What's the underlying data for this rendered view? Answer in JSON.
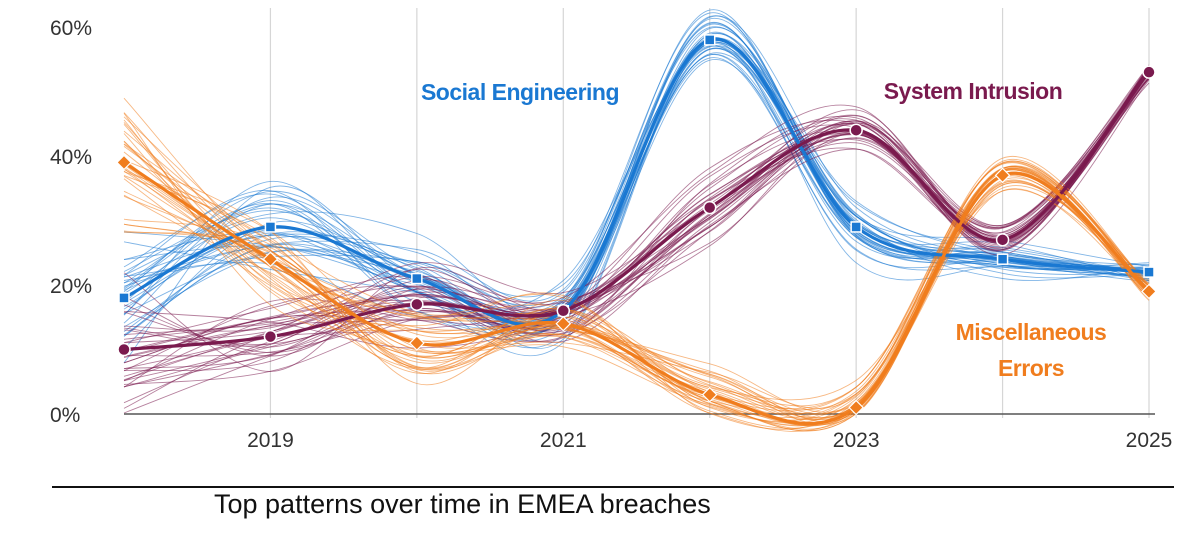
{
  "chart_data": {
    "type": "line",
    "title": "Top patterns over time in EMEA breaches",
    "xlabel": "",
    "ylabel": "",
    "x": [
      2018,
      2019,
      2020,
      2021,
      2022,
      2023,
      2024,
      2025
    ],
    "x_tick_labels": [
      "2019",
      "2021",
      "2023",
      "2025"
    ],
    "y_tick_labels": [
      "0%",
      "20%",
      "40%",
      "60%"
    ],
    "ylim": [
      0,
      60
    ],
    "grid": "vertical",
    "series": [
      {
        "name": "Social Engineering",
        "color": "#1a78d2",
        "values": [
          18,
          29,
          21,
          16,
          58,
          29,
          24,
          22
        ]
      },
      {
        "name": "System Intrusion",
        "color": "#7a1a4e",
        "values": [
          10,
          12,
          17,
          16,
          32,
          44,
          27,
          53
        ]
      },
      {
        "name": "Miscellaneous Errors",
        "color": "#f07d1e",
        "values": [
          39,
          24,
          11,
          14,
          3,
          1,
          37,
          19
        ]
      }
    ],
    "annotations": [
      {
        "series": "Social Engineering",
        "lines": [
          "Social Engineering"
        ]
      },
      {
        "series": "System Intrusion",
        "lines": [
          "System Intrusion"
        ]
      },
      {
        "series": "Miscellaneous Errors",
        "lines": [
          "Miscellaneous",
          "Errors"
        ]
      }
    ]
  }
}
